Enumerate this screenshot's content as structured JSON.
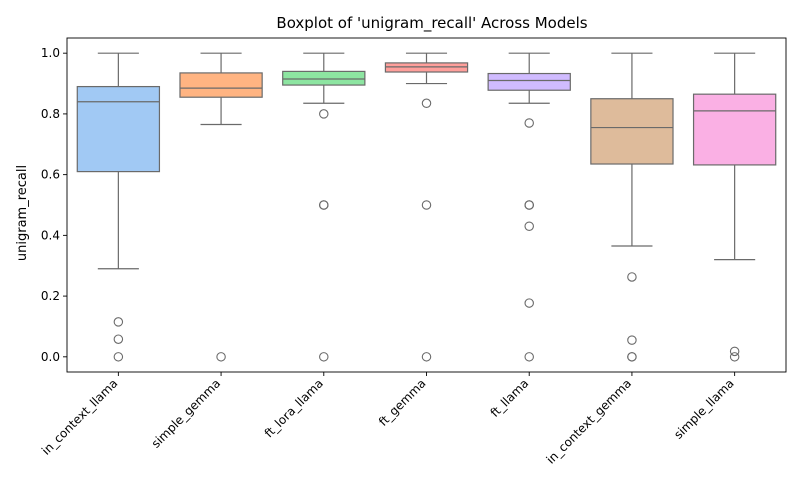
{
  "chart_data": {
    "type": "box",
    "title": "Boxplot of 'unigram_recall' Across Models",
    "xlabel": "",
    "ylabel": "unigram_recall",
    "ylim": [
      -0.05,
      1.05
    ],
    "yticks": [
      "0.0",
      "0.2",
      "0.4",
      "0.6",
      "0.8",
      "1.0"
    ],
    "ytick_values": [
      0.0,
      0.2,
      0.4,
      0.6,
      0.8,
      1.0
    ],
    "grid": false,
    "legend": "none",
    "categories": [
      "in_context_llama",
      "simple_gemma",
      "ft_lora_llama",
      "ft_gemma",
      "ft_llama",
      "in_context_gemma",
      "simple_llama"
    ],
    "boxes": [
      {
        "name": "in_context_llama",
        "color": "#a1c9f4",
        "whisker_low": 0.29,
        "q1": 0.61,
        "median": 0.84,
        "q3": 0.89,
        "whisker_high": 1.0,
        "outliers": [
          0.115,
          0.058,
          0.0
        ]
      },
      {
        "name": "simple_gemma",
        "color": "#ffb482",
        "whisker_low": 0.765,
        "q1": 0.855,
        "median": 0.885,
        "q3": 0.935,
        "whisker_high": 1.0,
        "outliers": [
          0.0
        ]
      },
      {
        "name": "ft_lora_llama",
        "color": "#8de5a1",
        "whisker_low": 0.835,
        "q1": 0.895,
        "median": 0.915,
        "q3": 0.94,
        "whisker_high": 1.0,
        "outliers": [
          0.8,
          0.5,
          0.5,
          0.0
        ]
      },
      {
        "name": "ft_gemma",
        "color": "#ff9f9b",
        "whisker_low": 0.9,
        "q1": 0.938,
        "median": 0.955,
        "q3": 0.968,
        "whisker_high": 1.0,
        "outliers": [
          0.835,
          0.5,
          0.0
        ]
      },
      {
        "name": "ft_llama",
        "color": "#d0bbff",
        "whisker_low": 0.835,
        "q1": 0.878,
        "median": 0.91,
        "q3": 0.933,
        "whisker_high": 1.0,
        "outliers": [
          0.77,
          0.5,
          0.5,
          0.43,
          0.177,
          0.0
        ]
      },
      {
        "name": "in_context_gemma",
        "color": "#debb9b",
        "whisker_low": 0.365,
        "q1": 0.635,
        "median": 0.755,
        "q3": 0.85,
        "whisker_high": 1.0,
        "outliers": [
          0.263,
          0.055,
          0.0,
          0.0
        ]
      },
      {
        "name": "simple_llama",
        "color": "#fab0e4",
        "whisker_low": 0.32,
        "q1": 0.632,
        "median": 0.81,
        "q3": 0.865,
        "whisker_high": 1.0,
        "outliers": [
          0.018,
          0.0
        ]
      }
    ]
  }
}
